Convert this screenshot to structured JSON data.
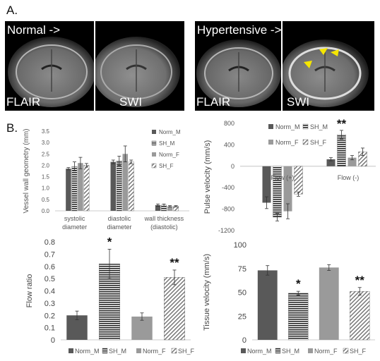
{
  "panel_a": {
    "label": "A.",
    "normal_label": "Normal ->",
    "hypertensive_label": "Hypertensive ->",
    "images": [
      {
        "sequence": "FLAIR"
      },
      {
        "sequence": "SWI"
      },
      {
        "sequence": "FLAIR"
      },
      {
        "sequence": "SWI"
      }
    ]
  },
  "panel_b": {
    "label": "B."
  },
  "colors": {
    "norm_m": "#595959",
    "sh_m": "#262626",
    "norm_f": "#9a9a9a",
    "sh_f": "#7a7a7a"
  },
  "chart_data": [
    {
      "type": "bar",
      "ylabel": "Vessel wall geometry (mm)",
      "ylim": [
        0,
        3.5
      ],
      "yticks": [
        "0.0",
        "0.5",
        "1.0",
        "1.5",
        "2.0",
        "2.5",
        "3.0",
        "3.5"
      ],
      "categories": [
        [
          "systolic",
          "diameter"
        ],
        [
          "diastolic",
          "diameter"
        ],
        [
          "wall thickness",
          "(diastolic)"
        ]
      ],
      "legend": [
        "Norm_M",
        "SH_M",
        "Norm_F",
        "SH_F"
      ],
      "series": [
        {
          "name": "Norm_M",
          "values": [
            1.85,
            2.15,
            0.25
          ],
          "err": [
            0.05,
            0.08,
            0.05
          ]
        },
        {
          "name": "SH_M",
          "values": [
            1.95,
            2.2,
            0.25
          ],
          "err": [
            0.2,
            0.2,
            0.05
          ]
        },
        {
          "name": "Norm_F",
          "values": [
            2.1,
            2.5,
            0.2
          ],
          "err": [
            0.25,
            0.35,
            0.03
          ]
        },
        {
          "name": "SH_F",
          "values": [
            2.0,
            2.15,
            0.2
          ],
          "err": [
            0.08,
            0.08,
            0.03
          ]
        }
      ]
    },
    {
      "type": "bar",
      "ylabel": "Pulse velocity (mm/s)",
      "ylim": [
        -1200,
        800
      ],
      "yticks": [
        "-1200",
        "-800",
        "-400",
        "0",
        "400",
        "800"
      ],
      "categories": [
        "Flow (+)",
        "Flow (-)"
      ],
      "legend": [
        "Norm_M",
        "SH_M",
        "Norm_F",
        "SH_F"
      ],
      "series": [
        {
          "name": "Norm_M",
          "values": [
            -680,
            130
          ],
          "err": [
            110,
            30
          ]
        },
        {
          "name": "SH_M",
          "values": [
            -950,
            590
          ],
          "err": [
            70,
            80
          ]
        },
        {
          "name": "Norm_F",
          "values": [
            -840,
            160
          ],
          "err": [
            140,
            40
          ]
        },
        {
          "name": "SH_F",
          "values": [
            -520,
            270
          ],
          "err": [
            40,
            70
          ]
        }
      ],
      "annotations": [
        {
          "category": "Flow (-)",
          "series": "SH_M",
          "text": "**"
        }
      ]
    },
    {
      "type": "bar",
      "ylabel": "Flow ratio",
      "ylim": [
        0,
        0.8
      ],
      "yticks": [
        "0",
        "0.1",
        "0.2",
        "0.3",
        "0.4",
        "0.5",
        "0.6",
        "0.7",
        "0.8"
      ],
      "categories": [
        "Norm_M",
        "SH_M",
        "Norm_F",
        "SH_F"
      ],
      "values": [
        0.2,
        0.62,
        0.19,
        0.51
      ],
      "err": [
        0.035,
        0.12,
        0.03,
        0.06
      ],
      "stars": [
        "",
        "*",
        "",
        "**"
      ],
      "legend": [
        "Norm_M",
        "SH_M",
        "Norm_F",
        "SH_F"
      ]
    },
    {
      "type": "bar",
      "ylabel": "Tissue velocity (mm/s)",
      "ylim": [
        0,
        100
      ],
      "yticks": [
        "0",
        "25",
        "50",
        "75",
        "100"
      ],
      "categories": [
        "Norm_M",
        "SH_M",
        "Norm_F",
        "SH_F"
      ],
      "values": [
        73,
        49,
        76,
        51
      ],
      "err": [
        5,
        2,
        3,
        4
      ],
      "stars": [
        "",
        "*",
        "",
        "**"
      ],
      "legend": [
        "Norm_M",
        "SH_M",
        "Norm_F",
        "SH_F"
      ]
    }
  ]
}
